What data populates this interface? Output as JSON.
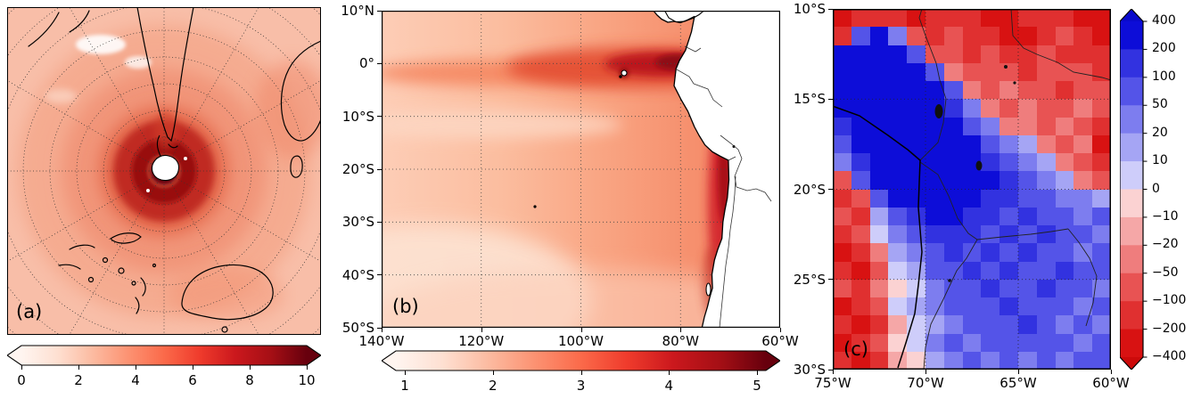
{
  "figure": {
    "background": "#ffffff",
    "type": "three-panel scientific map figure"
  },
  "chart_data": [
    {
      "id": "a",
      "type": "heatmap",
      "label": "(a)",
      "projection": "south polar stereographic",
      "colormap": "Reds",
      "colormap_stops": [
        "#fff5f0",
        "#fee0d2",
        "#fcbba1",
        "#fc9272",
        "#fb6a4a",
        "#ef3b2c",
        "#cb181d",
        "#a50f15",
        "#67000d"
      ],
      "colorbar": {
        "orientation": "horizontal",
        "extend": "both",
        "range": [
          0,
          10
        ],
        "ticks": [
          0,
          2,
          4,
          6,
          8,
          10
        ]
      },
      "graticule": {
        "style": "dotted",
        "meridian_step_deg": 30,
        "parallel_circles": 8
      },
      "profile_by_latitude": {
        "latitudes_deg": [
          -90,
          -80,
          -72,
          -65,
          -55,
          -45,
          -30,
          -15,
          0
        ],
        "values": [
          0.5,
          6,
          10,
          7,
          3.5,
          2.8,
          2.4,
          2.2,
          2.0
        ]
      }
    },
    {
      "id": "b",
      "type": "heatmap",
      "label": "(b)",
      "projection": "plate carree",
      "extent": {
        "lon": [
          -140,
          -60
        ],
        "lat": [
          -50,
          10
        ]
      },
      "x_ticks": [
        "140°W",
        "120°W",
        "100°W",
        "80°W",
        "60°W"
      ],
      "y_ticks": [
        "10°N",
        "0°",
        "10°S",
        "20°S",
        "30°S",
        "40°S",
        "50°S"
      ],
      "colormap": "Reds",
      "colorbar": {
        "orientation": "horizontal",
        "extend": "both",
        "range": [
          1,
          5
        ],
        "ticks": [
          1,
          2,
          3,
          4,
          5
        ]
      },
      "approx_values_grid": {
        "lons": [
          -140,
          -120,
          -100,
          -80,
          -60
        ],
        "lats": [
          10,
          0,
          -10,
          -20,
          -30,
          -40,
          -50
        ],
        "values": [
          [
            2.4,
            2.7,
            3.0,
            3.1,
            2.8
          ],
          [
            2.7,
            3.1,
            3.8,
            4.7,
            3.4
          ],
          [
            2.2,
            2.6,
            3.2,
            4.3,
            4.0
          ],
          [
            2.0,
            2.3,
            2.8,
            3.9,
            4.5
          ],
          [
            1.8,
            2.1,
            2.5,
            3.3,
            4.3
          ],
          [
            1.7,
            1.9,
            2.2,
            2.8,
            3.6
          ],
          [
            1.6,
            1.8,
            2.0,
            2.4,
            2.9
          ]
        ]
      }
    },
    {
      "id": "c",
      "type": "heatmap",
      "label": "(c)",
      "projection": "plate carree",
      "extent": {
        "lon": [
          -75,
          -60
        ],
        "lat": [
          -30,
          -10
        ]
      },
      "x_ticks": [
        "75°W",
        "70°W",
        "65°W",
        "60°W"
      ],
      "y_ticks": [
        "10°S",
        "15°S",
        "20°S",
        "25°S",
        "30°S"
      ],
      "colorbar": {
        "orientation": "vertical",
        "extend": "both",
        "tick_labels": [
          "400",
          "200",
          "100",
          "50",
          "20",
          "10",
          "0",
          "−10",
          "−20",
          "−50",
          "−100",
          "−200",
          "−400"
        ],
        "levels": [
          400,
          200,
          100,
          50,
          20,
          10,
          0,
          -10,
          -20,
          -50,
          -100,
          -200,
          -400
        ],
        "segment_colors_top_to_bottom": [
          "#0d0dd8",
          "#3232e0",
          "#5454e8",
          "#7d7def",
          "#a5a5f4",
          "#cecdfa",
          "#fbd2d2",
          "#f5a7a7",
          "#ef7d7d",
          "#e85353",
          "#e03030",
          "#d81212"
        ],
        "extend_above": "#0a0acc",
        "extend_below": "#cc0a0a"
      },
      "grid": {
        "ncols": 15,
        "nrows": 20,
        "lon_start": -75,
        "lon_step": 1,
        "lat_start": -10,
        "lat_step": -1,
        "values": [
          [
            -200,
            -100,
            -100,
            -100,
            -200,
            -100,
            -100,
            -100,
            -200,
            -200,
            -100,
            -100,
            -100,
            -200,
            -400
          ],
          [
            -100,
            100,
            400,
            50,
            -50,
            -100,
            -50,
            -100,
            -100,
            -400,
            -200,
            -100,
            -50,
            -100,
            -200
          ],
          [
            400,
            400,
            400,
            400,
            100,
            -50,
            -50,
            -100,
            -50,
            -100,
            -100,
            -50,
            -100,
            -100,
            -100
          ],
          [
            400,
            400,
            400,
            400,
            400,
            100,
            -20,
            -50,
            -50,
            -50,
            -100,
            -50,
            -50,
            -50,
            -100
          ],
          [
            400,
            400,
            400,
            400,
            400,
            400,
            100,
            -20,
            -50,
            -20,
            -50,
            -50,
            -100,
            -50,
            -50
          ],
          [
            400,
            400,
            400,
            400,
            400,
            400,
            200,
            50,
            -20,
            -50,
            -20,
            -50,
            -50,
            -20,
            -50
          ],
          [
            200,
            400,
            400,
            400,
            400,
            400,
            400,
            100,
            50,
            -20,
            -20,
            -50,
            -20,
            -50,
            -100
          ],
          [
            100,
            400,
            400,
            400,
            400,
            400,
            400,
            400,
            100,
            50,
            20,
            -20,
            -50,
            -20,
            -400
          ],
          [
            50,
            200,
            400,
            400,
            400,
            400,
            400,
            400,
            200,
            100,
            50,
            20,
            -20,
            -50,
            -100
          ],
          [
            -50,
            100,
            400,
            400,
            400,
            400,
            400,
            400,
            400,
            200,
            100,
            50,
            20,
            -20,
            -50
          ],
          [
            -100,
            -50,
            100,
            400,
            400,
            400,
            400,
            400,
            200,
            200,
            100,
            100,
            50,
            50,
            20
          ],
          [
            -50,
            -100,
            20,
            100,
            200,
            400,
            400,
            200,
            200,
            100,
            200,
            100,
            100,
            50,
            100
          ],
          [
            -100,
            -50,
            10,
            50,
            100,
            200,
            200,
            200,
            100,
            200,
            100,
            200,
            100,
            100,
            50
          ],
          [
            -200,
            -100,
            -20,
            20,
            50,
            100,
            200,
            100,
            200,
            100,
            200,
            100,
            100,
            50,
            100
          ],
          [
            -100,
            -200,
            -50,
            10,
            20,
            100,
            100,
            200,
            100,
            200,
            100,
            100,
            200,
            100,
            100
          ],
          [
            -50,
            -100,
            -20,
            0,
            10,
            50,
            100,
            100,
            200,
            100,
            100,
            200,
            100,
            100,
            50
          ],
          [
            -200,
            -100,
            -50,
            10,
            20,
            50,
            100,
            100,
            100,
            200,
            100,
            100,
            100,
            50,
            100
          ],
          [
            -100,
            -200,
            -100,
            -10,
            10,
            20,
            50,
            100,
            100,
            100,
            200,
            100,
            50,
            100,
            50
          ],
          [
            -200,
            -100,
            -50,
            0,
            10,
            50,
            100,
            50,
            100,
            100,
            100,
            100,
            100,
            50,
            100
          ],
          [
            -100,
            -200,
            -100,
            -10,
            0,
            20,
            50,
            100,
            50,
            100,
            50,
            100,
            50,
            100,
            100
          ]
        ]
      }
    }
  ]
}
